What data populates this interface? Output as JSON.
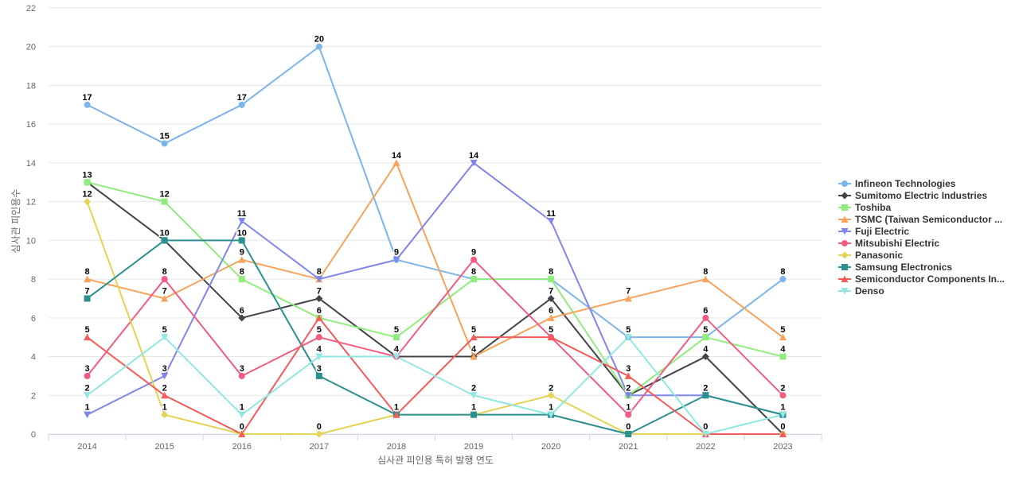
{
  "chart_data": {
    "type": "line",
    "title": "",
    "xlabel": "심사관 피인용 특허 발행 연도",
    "ylabel": "심사관 피인용수",
    "ylim": [
      0,
      22
    ],
    "yticks": [
      0,
      2,
      4,
      6,
      8,
      10,
      12,
      14,
      16,
      18,
      20,
      22
    ],
    "grid": true,
    "legend_position": "right",
    "categories": [
      "2014",
      "2015",
      "2016",
      "2017",
      "2018",
      "2019",
      "2020",
      "2021",
      "2022",
      "2023"
    ],
    "series": [
      {
        "name": "Infineon Technologies",
        "legend_label": "Infineon Technologies",
        "color": "#7cb5ec",
        "marker": "circle",
        "values": [
          17,
          15,
          17,
          20,
          9,
          8,
          8,
          5,
          5,
          8
        ]
      },
      {
        "name": "Sumitomo Electric Industries",
        "legend_label": "Sumitomo Electric Industries",
        "color": "#434348",
        "marker": "diamond",
        "values": [
          13,
          10,
          6,
          7,
          4,
          4,
          7,
          2,
          4,
          0
        ]
      },
      {
        "name": "Toshiba",
        "legend_label": "Toshiba",
        "color": "#90ed7d",
        "marker": "square",
        "values": [
          13,
          12,
          8,
          6,
          5,
          8,
          8,
          2,
          5,
          4
        ]
      },
      {
        "name": "TSMC (Taiwan Semiconductor Manufacturing)",
        "legend_label": "TSMC (Taiwan Semiconductor ...",
        "color": "#f7a35c",
        "marker": "triangle",
        "values": [
          8,
          7,
          9,
          8,
          14,
          4,
          6,
          7,
          8,
          5
        ]
      },
      {
        "name": "Fuji Electric",
        "legend_label": "Fuji Electric",
        "color": "#8085e9",
        "marker": "triangle-down",
        "values": [
          1,
          3,
          11,
          8,
          9,
          14,
          11,
          2,
          2,
          1
        ]
      },
      {
        "name": "Mitsubishi Electric",
        "legend_label": "Mitsubishi Electric",
        "color": "#f15c80",
        "marker": "circle",
        "values": [
          3,
          8,
          3,
          5,
          4,
          9,
          5,
          1,
          6,
          2
        ]
      },
      {
        "name": "Panasonic",
        "legend_label": "Panasonic",
        "color": "#e4d354",
        "marker": "diamond",
        "values": [
          12,
          1,
          0,
          0,
          1,
          1,
          2,
          0,
          0,
          0
        ]
      },
      {
        "name": "Samsung Electronics",
        "legend_label": "Samsung Electronics",
        "color": "#2b908f",
        "marker": "square",
        "values": [
          7,
          10,
          10,
          3,
          1,
          1,
          1,
          0,
          2,
          1
        ]
      },
      {
        "name": "Semiconductor Components Industries",
        "legend_label": "Semiconductor Components In...",
        "color": "#f45b5b",
        "marker": "triangle",
        "values": [
          5,
          2,
          0,
          6,
          1,
          5,
          5,
          3,
          0,
          0
        ]
      },
      {
        "name": "Denso",
        "legend_label": "Denso",
        "color": "#91e8e1",
        "marker": "triangle-down",
        "values": [
          2,
          5,
          1,
          4,
          4,
          2,
          1,
          5,
          0,
          1
        ]
      }
    ]
  }
}
